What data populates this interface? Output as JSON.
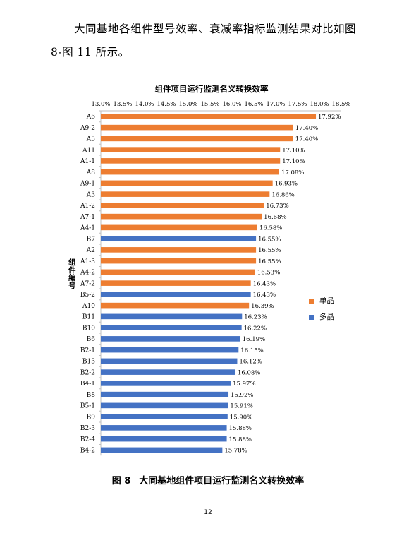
{
  "paragraph": "大同基地各组件型号效率、衰减率指标监测结果对比如图 8-图 11 所示。",
  "chart_data": {
    "type": "bar",
    "orientation": "horizontal",
    "title": "组件项目运行监测名义转换效率",
    "ylabel": "组件编号",
    "xlabel": "",
    "xlim": [
      13.0,
      18.5
    ],
    "x_ticks": [
      "13.0%",
      "13.5%",
      "14.0%",
      "14.5%",
      "15.0%",
      "15.5%",
      "16.0%",
      "16.5%",
      "17.0%",
      "17.5%",
      "18.0%",
      "18.5%"
    ],
    "grid": false,
    "legend_position": "right",
    "legend": [
      {
        "name": "单品",
        "color": "#ED7D31"
      },
      {
        "name": "多晶",
        "color": "#4472C4"
      }
    ],
    "categories": [
      "A6",
      "A9-2",
      "A5",
      "A11",
      "A1-1",
      "A8",
      "A9-1",
      "A3",
      "A1-2",
      "A7-1",
      "A4-1",
      "B7",
      "A2",
      "A1-3",
      "A4-2",
      "A7-2",
      "B5-2",
      "A10",
      "B11",
      "B10",
      "B6",
      "B2-1",
      "B13",
      "B2-2",
      "B4-1",
      "B8",
      "B5-1",
      "B9",
      "B2-3",
      "B2-4",
      "B4-2"
    ],
    "values": [
      17.92,
      17.4,
      17.4,
      17.1,
      17.1,
      17.08,
      16.93,
      16.86,
      16.73,
      16.68,
      16.58,
      16.55,
      16.55,
      16.55,
      16.53,
      16.43,
      16.43,
      16.39,
      16.23,
      16.22,
      16.19,
      16.15,
      16.12,
      16.08,
      15.97,
      15.92,
      15.91,
      15.9,
      15.88,
      15.88,
      15.78
    ],
    "labels": [
      "17.92%",
      "17.40%",
      "17.40%",
      "17.10%",
      "17.10%",
      "17.08%",
      "16.93%",
      "16.86%",
      "16.73%",
      "16.68%",
      "16.58%",
      "16.55%",
      "16.55%",
      "16.55%",
      "16.53%",
      "16.43%",
      "16.43%",
      "16.39%",
      "16.23%",
      "16.22%",
      "16.19%",
      "16.15%",
      "16.12%",
      "16.08%",
      "15.97%",
      "15.92%",
      "15.91%",
      "15.90%",
      "15.88%",
      "15.88%",
      "15.78%"
    ],
    "groups": [
      "单品",
      "单品",
      "单品",
      "单品",
      "单品",
      "单品",
      "单品",
      "单品",
      "单品",
      "单品",
      "单品",
      "多晶",
      "单品",
      "单品",
      "单品",
      "单品",
      "多晶",
      "单品",
      "多晶",
      "多晶",
      "多晶",
      "多晶",
      "多晶",
      "多晶",
      "多晶",
      "多晶",
      "多晶",
      "多晶",
      "多晶",
      "多晶",
      "多晶"
    ]
  },
  "caption": {
    "number": "图 8",
    "text": "大同基地组件项目运行监测名义转换效率"
  },
  "page_number": "12"
}
